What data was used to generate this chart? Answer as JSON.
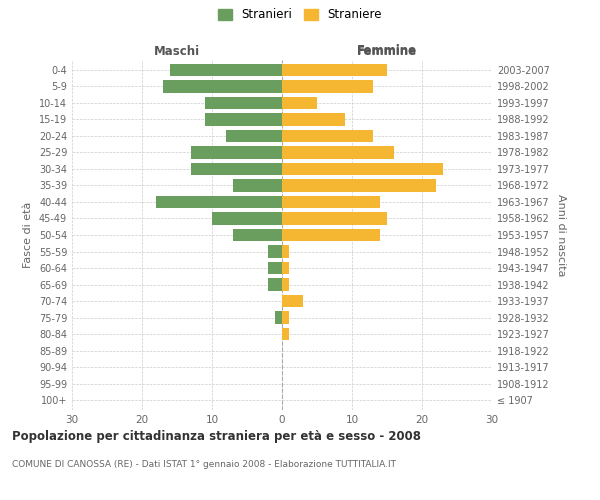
{
  "age_groups": [
    "100+",
    "95-99",
    "90-94",
    "85-89",
    "80-84",
    "75-79",
    "70-74",
    "65-69",
    "60-64",
    "55-59",
    "50-54",
    "45-49",
    "40-44",
    "35-39",
    "30-34",
    "25-29",
    "20-24",
    "15-19",
    "10-14",
    "5-9",
    "0-4"
  ],
  "birth_years": [
    "≤ 1907",
    "1908-1912",
    "1913-1917",
    "1918-1922",
    "1923-1927",
    "1928-1932",
    "1933-1937",
    "1938-1942",
    "1943-1947",
    "1948-1952",
    "1953-1957",
    "1958-1962",
    "1963-1967",
    "1968-1972",
    "1973-1977",
    "1978-1982",
    "1983-1987",
    "1988-1992",
    "1993-1997",
    "1998-2002",
    "2003-2007"
  ],
  "maschi": [
    0,
    0,
    0,
    0,
    0,
    1,
    0,
    2,
    2,
    2,
    7,
    10,
    18,
    7,
    13,
    13,
    8,
    11,
    11,
    17,
    16
  ],
  "femmine": [
    0,
    0,
    0,
    0,
    1,
    1,
    3,
    1,
    1,
    1,
    14,
    15,
    14,
    22,
    23,
    16,
    13,
    9,
    5,
    13,
    15
  ],
  "color_maschi": "#6a9e5e",
  "color_femmine": "#f5b731",
  "title": "Popolazione per cittadinanza straniera per età e sesso - 2008",
  "subtitle": "COMUNE DI CANOSSA (RE) - Dati ISTAT 1° gennaio 2008 - Elaborazione TUTTITALIA.IT",
  "ylabel_left": "Fasce di età",
  "ylabel_right": "Anni di nascita",
  "xlabel_left": "Maschi",
  "xlabel_right": "Femmine",
  "legend_maschi": "Stranieri",
  "legend_femmine": "Straniere",
  "xlim": 30,
  "background_color": "#ffffff",
  "grid_color": "#cccccc",
  "tick_color": "#999999",
  "label_color": "#666666"
}
